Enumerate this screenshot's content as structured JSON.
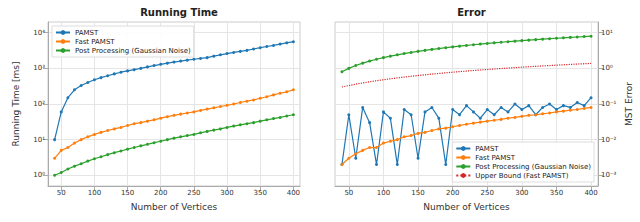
{
  "chart_data": [
    {
      "type": "line",
      "title": "Running Time",
      "x_label": "Number of Vertices",
      "y_label": "Running Time [ms]",
      "x": [
        40,
        50,
        60,
        70,
        80,
        90,
        100,
        110,
        120,
        130,
        140,
        150,
        160,
        170,
        180,
        190,
        200,
        210,
        220,
        230,
        240,
        250,
        260,
        270,
        280,
        290,
        300,
        310,
        320,
        330,
        340,
        350,
        360,
        370,
        380,
        390,
        400
      ],
      "series": [
        {
          "name": "PAMST",
          "color": "#1f77b4",
          "marker": "circle",
          "line_style": "solid",
          "values": [
            10,
            60,
            150,
            250,
            330,
            400,
            480,
            550,
            620,
            700,
            780,
            850,
            920,
            1000,
            1100,
            1200,
            1300,
            1400,
            1500,
            1600,
            1700,
            1800,
            1900,
            2000,
            2200,
            2400,
            2600,
            2800,
            3000,
            3200,
            3500,
            3800,
            4100,
            4400,
            4800,
            5200,
            5600
          ]
        },
        {
          "name": "Fast PAMST",
          "color": "#ff7f0e",
          "marker": "circle",
          "line_style": "solid",
          "values": [
            3,
            5,
            6,
            8,
            10,
            12,
            14,
            16,
            18,
            20,
            22,
            25,
            28,
            30,
            33,
            36,
            40,
            44,
            48,
            52,
            56,
            60,
            66,
            72,
            78,
            85,
            92,
            100,
            110,
            120,
            130,
            145,
            160,
            180,
            200,
            220,
            250
          ]
        },
        {
          "name": "Post Processing (Gaussian Noise)",
          "color": "#2ca02c",
          "marker": "circle",
          "line_style": "solid",
          "values": [
            1,
            1.2,
            1.5,
            1.8,
            2.1,
            2.5,
            2.9,
            3.3,
            3.8,
            4.3,
            4.8,
            5.4,
            6,
            6.7,
            7.4,
            8.2,
            9,
            10,
            11,
            12,
            13,
            14,
            15.5,
            17,
            18.5,
            20,
            22,
            24,
            26,
            28,
            30,
            33,
            36,
            39,
            42,
            46,
            50
          ]
        }
      ],
      "xlim": [
        30,
        410
      ],
      "xticks": [
        50,
        100,
        150,
        200,
        250,
        300,
        350,
        400
      ],
      "ylim": [
        0.5,
        20000
      ],
      "yticks": [
        {
          "value": 1,
          "label": "10⁰"
        },
        {
          "value": 10,
          "label": "10¹"
        },
        {
          "value": 100,
          "label": "10²"
        },
        {
          "value": 1000,
          "label": "10³"
        },
        {
          "value": 10000,
          "label": "10⁴"
        }
      ],
      "log": "y",
      "grid": true,
      "legend": "upper left"
    },
    {
      "type": "line",
      "title": "Error",
      "x_label": "Number of Vertices",
      "y_label": "MST Error",
      "x": [
        40,
        50,
        60,
        70,
        80,
        90,
        100,
        110,
        120,
        130,
        140,
        150,
        160,
        170,
        180,
        190,
        200,
        210,
        220,
        230,
        240,
        250,
        260,
        270,
        280,
        290,
        300,
        310,
        320,
        330,
        340,
        350,
        360,
        370,
        380,
        390,
        400
      ],
      "series": [
        {
          "name": "PAMST",
          "color": "#1f77b4",
          "marker": "circle",
          "line_style": "solid",
          "values": [
            0.002,
            0.05,
            0.003,
            0.08,
            0.03,
            0.002,
            0.06,
            0.04,
            0.002,
            0.07,
            0.05,
            0.003,
            0.06,
            0.08,
            0.04,
            0.002,
            0.07,
            0.05,
            0.09,
            0.06,
            0.04,
            0.07,
            0.05,
            0.08,
            0.06,
            0.1,
            0.07,
            0.09,
            0.05,
            0.08,
            0.1,
            0.07,
            0.09,
            0.08,
            0.11,
            0.09,
            0.15
          ]
        },
        {
          "name": "Fast PAMST",
          "color": "#ff7f0e",
          "marker": "circle",
          "line_style": "solid",
          "values": [
            0.002,
            0.003,
            0.004,
            0.005,
            0.006,
            0.006,
            0.008,
            0.009,
            0.01,
            0.012,
            0.013,
            0.015,
            0.016,
            0.018,
            0.02,
            0.021,
            0.023,
            0.025,
            0.027,
            0.029,
            0.031,
            0.033,
            0.035,
            0.037,
            0.04,
            0.042,
            0.045,
            0.048,
            0.05,
            0.053,
            0.056,
            0.06,
            0.063,
            0.067,
            0.07,
            0.075,
            0.08
          ]
        },
        {
          "name": "Post Processing (Gaussian Noise)",
          "color": "#2ca02c",
          "marker": "circle",
          "line_style": "solid",
          "values": [
            0.8,
            1,
            1.2,
            1.4,
            1.6,
            1.8,
            2,
            2.2,
            2.4,
            2.6,
            2.8,
            3,
            3.2,
            3.4,
            3.6,
            3.8,
            4,
            4.2,
            4.4,
            4.6,
            4.8,
            5,
            5.2,
            5.4,
            5.6,
            5.8,
            6,
            6.2,
            6.4,
            6.6,
            6.8,
            7,
            7.2,
            7.4,
            7.6,
            7.8,
            8
          ]
        },
        {
          "name": "Upper Bound (Fast PAMST)",
          "color": "#d62728",
          "marker": "none",
          "line_style": "dotted",
          "values": [
            0.3,
            0.33,
            0.36,
            0.39,
            0.42,
            0.45,
            0.48,
            0.51,
            0.54,
            0.57,
            0.6,
            0.63,
            0.66,
            0.69,
            0.72,
            0.75,
            0.78,
            0.81,
            0.84,
            0.87,
            0.9,
            0.93,
            0.96,
            0.99,
            1.02,
            1.05,
            1.08,
            1.11,
            1.14,
            1.17,
            1.2,
            1.23,
            1.26,
            1.29,
            1.32,
            1.35,
            1.38
          ]
        }
      ],
      "xlim": [
        30,
        410
      ],
      "xticks": [
        50,
        100,
        150,
        200,
        250,
        300,
        350,
        400
      ],
      "ylim": [
        0.0005,
        20
      ],
      "yticks": [
        {
          "value": 0.001,
          "label": "10⁻³"
        },
        {
          "value": 0.01,
          "label": "10⁻²"
        },
        {
          "value": 0.1,
          "label": "10⁻¹"
        },
        {
          "value": 1,
          "label": "10⁰"
        },
        {
          "value": 10,
          "label": "10¹"
        }
      ],
      "log": "y",
      "grid": true,
      "legend": "lower right"
    }
  ]
}
